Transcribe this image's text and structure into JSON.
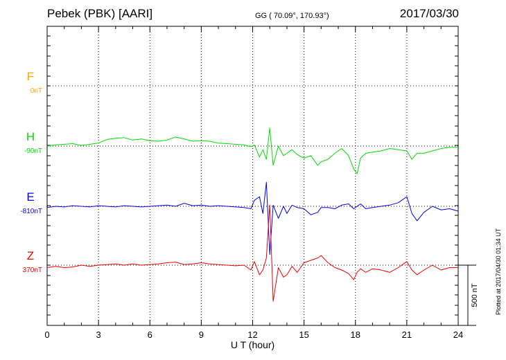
{
  "header": {
    "title": "Pebek (PBK)  [AARI]",
    "coordinates": "GG ( 70.09°, 170.93°)",
    "date": "2017/03/30"
  },
  "footer_note": "Plotted at 2017/04/30 01:34 UT",
  "scale_label": "500 nT",
  "colors": {
    "F": "#ffa500",
    "H": "#00dd00",
    "E": "#0000ee",
    "Z": "#ee0000",
    "grid": "#000000"
  },
  "chart_data": {
    "type": "line",
    "title": "Pebek (PBK)  [AARI]",
    "xlabel": "U T (hour)",
    "ylabel": "",
    "xlim": [
      0,
      24
    ],
    "xticks": [
      0,
      3,
      6,
      9,
      12,
      15,
      18,
      21,
      24
    ],
    "xtick_labels": [
      "0",
      "3",
      "6",
      "9",
      "12",
      "15",
      "18",
      "21",
      "24"
    ],
    "scale_bar_nT": 500,
    "grid": true,
    "series": [
      {
        "name": "F",
        "baseline_label": "0nT",
        "x": [],
        "y": []
      },
      {
        "name": "H",
        "baseline_label": "-90nT",
        "x": [
          0,
          0.5,
          1,
          1.5,
          2,
          2.5,
          3,
          3.5,
          4,
          4.5,
          5,
          5.5,
          6,
          6.5,
          7,
          7.5,
          8,
          8.5,
          9,
          9.5,
          10,
          10.5,
          11,
          11.5,
          11.9,
          12.1,
          12.4,
          12.6,
          12.8,
          13.0,
          13.2,
          13.5,
          13.8,
          14.0,
          14.3,
          14.6,
          15.0,
          15.4,
          15.8,
          16.0,
          16.4,
          16.8,
          17.2,
          17.6,
          17.9,
          18.1,
          18.3,
          18.6,
          19.0,
          19.5,
          20.0,
          20.5,
          21.0,
          21.3,
          21.6,
          22.0,
          22.5,
          23.0,
          23.5,
          24
        ],
        "y": [
          0,
          10,
          15,
          20,
          5,
          15,
          25,
          55,
          65,
          70,
          50,
          60,
          45,
          40,
          50,
          75,
          60,
          40,
          45,
          40,
          25,
          20,
          15,
          10,
          -5,
          10,
          -90,
          -30,
          -110,
          150,
          -160,
          0,
          -80,
          -60,
          -30,
          -70,
          -100,
          -80,
          -160,
          -130,
          -110,
          -60,
          -20,
          -80,
          -190,
          -230,
          -100,
          -60,
          -50,
          -40,
          -20,
          -30,
          -40,
          -110,
          -60,
          -60,
          -40,
          -20,
          -10,
          -10
        ]
      },
      {
        "name": "E",
        "baseline_label": "-810nT",
        "x": [
          0,
          0.5,
          1,
          1.5,
          2,
          2.5,
          3,
          3.5,
          4,
          4.5,
          5,
          5.5,
          6,
          6.5,
          7,
          7.5,
          8,
          8.5,
          9,
          9.5,
          10,
          10.5,
          11,
          11.5,
          11.9,
          12.1,
          12.4,
          12.6,
          12.8,
          13.0,
          13.2,
          13.5,
          13.8,
          14.0,
          14.3,
          14.6,
          15.0,
          15.4,
          15.8,
          16.0,
          16.4,
          16.8,
          17.2,
          17.6,
          17.9,
          18.1,
          18.3,
          18.6,
          19.0,
          19.5,
          20.0,
          20.5,
          21.0,
          21.3,
          21.6,
          22.0,
          22.5,
          23.0,
          23.5,
          24
        ],
        "y": [
          -10,
          0,
          -5,
          5,
          0,
          -5,
          5,
          0,
          -5,
          5,
          0,
          -5,
          0,
          5,
          10,
          0,
          25,
          5,
          10,
          0,
          5,
          0,
          -5,
          -10,
          -20,
          50,
          80,
          -60,
          200,
          -400,
          10,
          -100,
          0,
          -60,
          10,
          -10,
          -20,
          -70,
          -50,
          -10,
          -10,
          -20,
          10,
          20,
          -20,
          0,
          20,
          -20,
          -10,
          0,
          10,
          30,
          80,
          -60,
          -120,
          -50,
          0,
          -30,
          -20,
          -40
        ]
      },
      {
        "name": "Z",
        "baseline_label": "370nT",
        "x": [
          0,
          0.5,
          1,
          1.5,
          2,
          2.5,
          3,
          3.5,
          4,
          4.5,
          5,
          5.5,
          6,
          6.5,
          7,
          7.5,
          8,
          8.5,
          9,
          9.5,
          10,
          10.5,
          11,
          11.5,
          11.9,
          12.1,
          12.4,
          12.6,
          12.8,
          13.0,
          13.2,
          13.5,
          13.8,
          14.0,
          14.3,
          14.6,
          15.0,
          15.4,
          15.8,
          16.0,
          16.4,
          16.8,
          17.2,
          17.6,
          17.9,
          18.1,
          18.3,
          18.6,
          19.0,
          19.5,
          20.0,
          20.5,
          21.0,
          21.3,
          21.6,
          22.0,
          22.5,
          23.0,
          23.5,
          24
        ],
        "y": [
          -20,
          -10,
          -20,
          -15,
          0,
          -10,
          0,
          5,
          10,
          0,
          10,
          0,
          5,
          10,
          20,
          25,
          5,
          10,
          20,
          10,
          5,
          0,
          -5,
          0,
          -40,
          30,
          -80,
          -40,
          60,
          500,
          -300,
          -20,
          -100,
          -80,
          -10,
          -60,
          20,
          40,
          60,
          80,
          20,
          -20,
          -40,
          -70,
          -120,
          -60,
          -30,
          -60,
          -30,
          -40,
          -60,
          -20,
          30,
          -40,
          -80,
          -40,
          0,
          -40,
          -20,
          -20
        ]
      }
    ]
  }
}
